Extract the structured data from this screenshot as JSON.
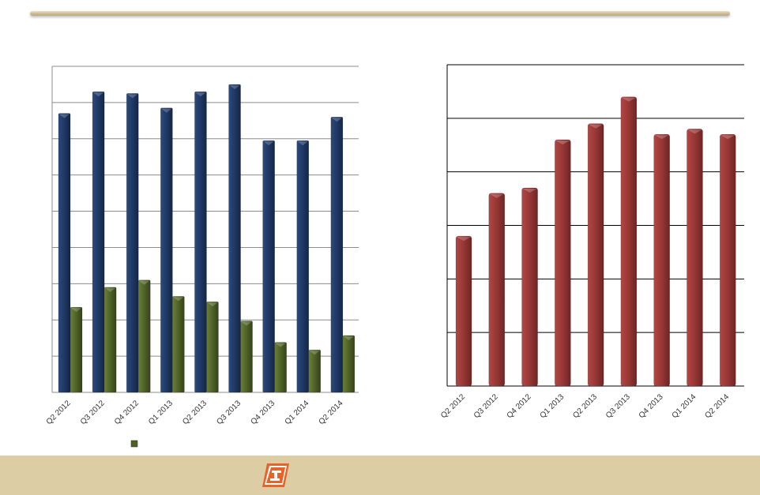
{
  "chart_data": [
    {
      "type": "bar",
      "categories": [
        "Q2 2012",
        "Q3 2012",
        "Q4 2012",
        "Q1 2013",
        "Q2 2013",
        "Q3 2013",
        "Q4 2013",
        "Q1 2014",
        "Q2 2014"
      ],
      "series": [
        {
          "values": [
            7.7,
            8.3,
            8.25,
            7.85,
            8.3,
            8.5,
            6.95,
            6.95,
            7.6
          ],
          "color": "#1f3864"
        },
        {
          "values": [
            2.35,
            2.9,
            3.1,
            2.65,
            2.5,
            1.97,
            1.38,
            1.17,
            1.57
          ],
          "color": "#4f6228"
        }
      ],
      "ylim": [
        0,
        9
      ],
      "grid": true,
      "legend": "bottom"
    },
    {
      "type": "bar",
      "categories": [
        "Q2 2012",
        "Q3 2012",
        "Q4 2012",
        "Q1 2013",
        "Q2 2013",
        "Q3 2013",
        "Q4 2013",
        "Q1 2014",
        "Q2 2014"
      ],
      "series": [
        {
          "values": [
            2.8,
            3.6,
            3.7,
            4.6,
            4.9,
            5.4,
            4.7,
            4.8,
            4.7
          ],
          "color": "#953735"
        }
      ],
      "ylim": [
        0,
        6
      ],
      "grid": true
    }
  ],
  "footer": {
    "logo_icon": "company-logo-icon",
    "color": "#dccda4"
  }
}
